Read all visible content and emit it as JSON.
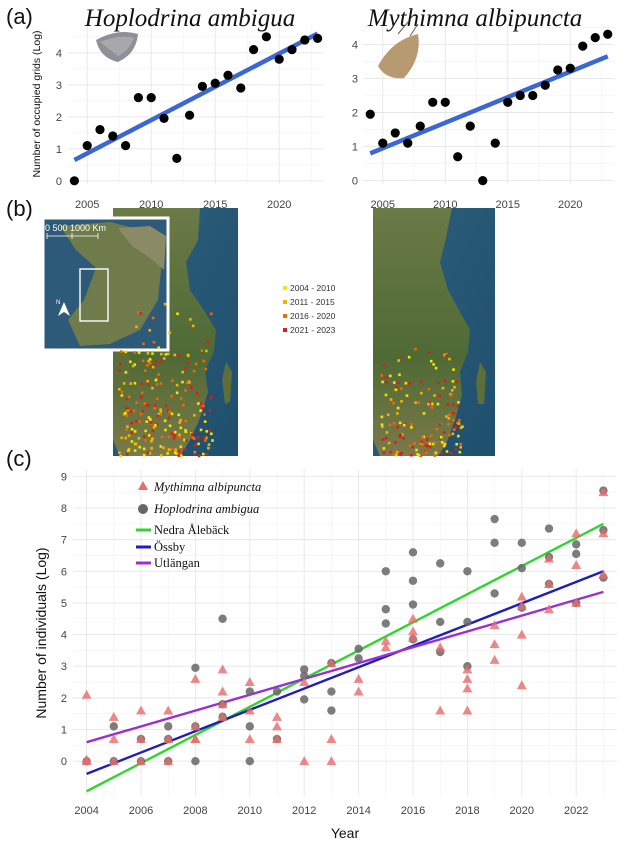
{
  "panels": {
    "a": "(a)",
    "b": "(b)",
    "c": "(c)"
  },
  "charts": [
    {
      "id": "hoplodrina",
      "type": "scatter",
      "title": "Hoplodrina ambigua",
      "ylabel": "Number of occupied grids (Log)",
      "xlim": [
        2003.5,
        2023.5
      ],
      "ylim": [
        -0.1,
        4.9
      ],
      "xticks": [
        2005,
        2010,
        2015,
        2020
      ],
      "yticks": [
        0,
        1,
        2,
        3,
        4
      ],
      "x": [
        2004,
        2005,
        2006,
        2007,
        2008,
        2009,
        2010,
        2011,
        2012,
        2013,
        2014,
        2015,
        2016,
        2017,
        2018,
        2019,
        2020,
        2021,
        2022,
        2023
      ],
      "y": [
        0.0,
        1.1,
        1.6,
        1.4,
        1.1,
        2.6,
        2.6,
        1.95,
        0.7,
        2.05,
        2.95,
        3.05,
        3.3,
        2.9,
        4.1,
        4.5,
        3.8,
        4.1,
        4.4,
        4.45
      ],
      "fit": {
        "x": [
          2004,
          2023
        ],
        "y": [
          0.65,
          4.6
        ]
      },
      "point_color": "#000000",
      "fit_color": "#3a66d6"
    },
    {
      "id": "mythimna",
      "type": "scatter",
      "title": "Mythimna albipuncta",
      "xlim": [
        2003.5,
        2023.5
      ],
      "ylim": [
        -0.1,
        4.6
      ],
      "xticks": [
        2005,
        2010,
        2015,
        2020
      ],
      "yticks": [
        0,
        1,
        2,
        3,
        4
      ],
      "x": [
        2004,
        2005,
        2006,
        2007,
        2008,
        2009,
        2010,
        2011,
        2012,
        2013,
        2014,
        2015,
        2016,
        2017,
        2018,
        2019,
        2020,
        2021,
        2022,
        2023
      ],
      "y": [
        1.95,
        1.1,
        1.4,
        1.1,
        1.6,
        2.3,
        2.3,
        0.7,
        1.6,
        0.0,
        1.1,
        2.3,
        2.5,
        2.5,
        2.8,
        3.25,
        3.3,
        3.95,
        4.2,
        4.3
      ],
      "fit": {
        "x": [
          2004,
          2023
        ],
        "y": [
          0.8,
          3.65
        ]
      },
      "point_color": "#000000",
      "fit_color": "#3a66d6"
    },
    {
      "id": "individuals",
      "type": "scatter",
      "ylabel": "Number of individuals (Log)",
      "xlabel": "Year",
      "xlim": [
        2003.5,
        2023.5
      ],
      "ylim": [
        -1.1,
        9.2
      ],
      "xticks": [
        2004,
        2006,
        2008,
        2010,
        2012,
        2014,
        2016,
        2018,
        2020,
        2022
      ],
      "yticks": [
        0,
        1,
        2,
        3,
        4,
        5,
        6,
        7,
        8,
        9
      ],
      "series": [
        {
          "name": "Mythimna albipuncta",
          "marker": "triangle",
          "color": "#e86a6a",
          "x": [
            2004,
            2004,
            2004,
            2005,
            2005,
            2005,
            2006,
            2006,
            2006,
            2007,
            2007,
            2007,
            2008,
            2008,
            2008,
            2008,
            2009,
            2009,
            2009,
            2009,
            2010,
            2010,
            2010,
            2011,
            2011,
            2011,
            2012,
            2012,
            2013,
            2013,
            2013,
            2014,
            2014,
            2015,
            2015,
            2016,
            2016,
            2016,
            2017,
            2017,
            2018,
            2018,
            2018,
            2018,
            2019,
            2019,
            2019,
            2020,
            2020,
            2020,
            2020,
            2021,
            2021,
            2021,
            2022,
            2022,
            2022,
            2023,
            2023,
            2023
          ],
          "y": [
            2.1,
            0.05,
            0.0,
            1.4,
            0.7,
            0.0,
            1.6,
            0.7,
            0.0,
            1.6,
            0.7,
            0.0,
            2.6,
            1.1,
            0.7,
            0.7,
            2.9,
            2.2,
            1.8,
            1.4,
            2.5,
            1.6,
            0.7,
            1.4,
            1.1,
            0.7,
            2.5,
            0.0,
            3.1,
            0.7,
            0.0,
            2.6,
            2.2,
            3.8,
            3.6,
            4.5,
            4.1,
            3.9,
            3.6,
            1.6,
            2.9,
            2.6,
            2.3,
            1.6,
            4.3,
            3.7,
            3.2,
            5.2,
            4.0,
            2.4,
            4.9,
            6.4,
            5.6,
            4.8,
            7.2,
            6.2,
            5.0,
            8.5,
            7.2,
            5.9
          ]
        },
        {
          "name": "Hoplodrina ambigua",
          "marker": "circle",
          "color": "#666666",
          "x": [
            2004,
            2005,
            2005,
            2006,
            2006,
            2007,
            2007,
            2007,
            2008,
            2008,
            2008,
            2009,
            2009,
            2009,
            2010,
            2010,
            2010,
            2011,
            2011,
            2012,
            2012,
            2012,
            2013,
            2013,
            2013,
            2014,
            2014,
            2015,
            2015,
            2015,
            2016,
            2016,
            2016,
            2016,
            2017,
            2017,
            2017,
            2018,
            2018,
            2018,
            2019,
            2019,
            2019,
            2020,
            2020,
            2020,
            2021,
            2021,
            2021,
            2022,
            2022,
            2022,
            2023,
            2023,
            2023
          ],
          "y": [
            0.0,
            1.1,
            0.0,
            0.7,
            0.0,
            1.1,
            0.7,
            0.0,
            2.95,
            1.1,
            0.0,
            4.5,
            1.8,
            1.4,
            2.2,
            1.1,
            0.0,
            2.2,
            0.7,
            2.9,
            2.7,
            1.95,
            3.1,
            2.2,
            1.6,
            3.55,
            3.25,
            6.0,
            4.8,
            4.35,
            6.6,
            5.7,
            4.95,
            3.85,
            6.25,
            4.4,
            3.45,
            6.0,
            4.4,
            3.0,
            7.65,
            6.9,
            5.3,
            6.9,
            6.1,
            4.85,
            7.35,
            6.45,
            5.6,
            6.85,
            6.55,
            5.0,
            8.55,
            7.3,
            5.8
          ]
        }
      ],
      "fits": [
        {
          "name": "Nedra Ålebäck",
          "color": "#2fd62f",
          "x": [
            2004,
            2023
          ],
          "y": [
            -0.95,
            7.5
          ]
        },
        {
          "name": "Össby",
          "color": "#1f1fb8",
          "x": [
            2004,
            2023
          ],
          "y": [
            -0.4,
            6.0
          ]
        },
        {
          "name": "Utlängan",
          "color": "#9b2fd6",
          "x": [
            2004,
            2023
          ],
          "y": [
            0.6,
            5.35
          ]
        }
      ]
    }
  ],
  "map": {
    "scale_label": "0   500 1000 Km",
    "north_label": "N",
    "legend": [
      {
        "label": "2004 - 2010",
        "color": "#f2e600"
      },
      {
        "label": "2011 - 2015",
        "color": "#f2b400"
      },
      {
        "label": "2016 - 2020",
        "color": "#f06a00"
      },
      {
        "label": "2021 - 2023",
        "color": "#e01b1b"
      }
    ]
  }
}
